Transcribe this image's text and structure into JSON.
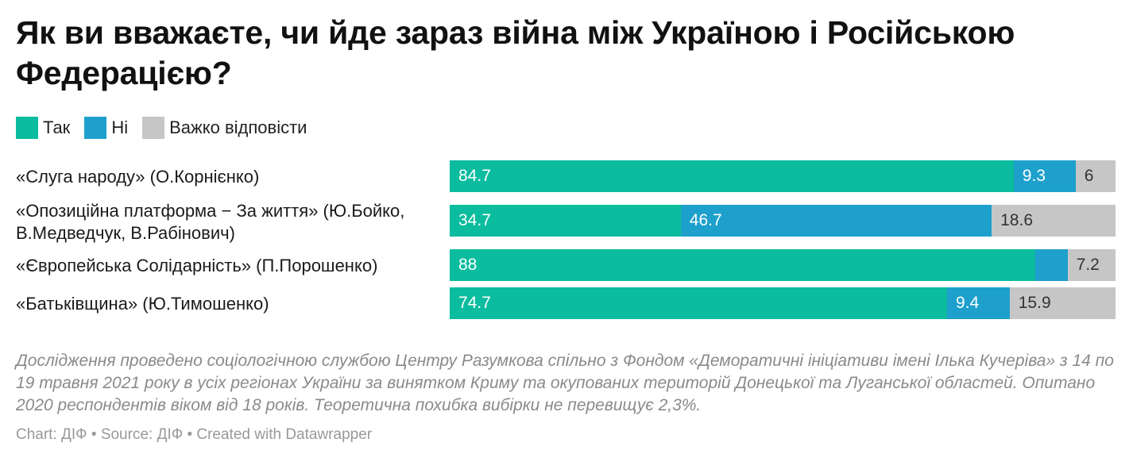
{
  "chart_data": {
    "type": "bar",
    "orientation": "horizontal",
    "stacked": true,
    "title": "Як ви вважаєте, чи йде зараз війна між Україною і Російською Федерацією?",
    "legend": [
      {
        "name": "Так",
        "color": "#0bbc9e"
      },
      {
        "name": "Ні",
        "color": "#1ea0cd"
      },
      {
        "name": "Важко відповісти",
        "color": "#c6c6c6"
      }
    ],
    "categories": [
      "«Слуга народу» (О.Корнієнко)",
      "«Опозиційна платформа − За життя» (Ю.Бойко, В.Медведчук, В.Рабінович)",
      "«Європейська Солідарність» (П.Порошенко)",
      "«Батьківщина» (Ю.Тимошенко)"
    ],
    "series": [
      {
        "name": "Так",
        "values": [
          84.7,
          34.7,
          88,
          74.7
        ],
        "labels": [
          "84.7",
          "34.7",
          "88",
          "74.7"
        ]
      },
      {
        "name": "Ні",
        "values": [
          9.3,
          46.7,
          4.8,
          9.4
        ],
        "labels": [
          "9.3",
          "46.7",
          "",
          "9.4"
        ]
      },
      {
        "name": "Важко відповісти",
        "values": [
          6,
          18.6,
          7.2,
          15.9
        ],
        "labels": [
          "6",
          "18.6",
          "7.2",
          "15.9"
        ]
      }
    ],
    "xlim": [
      0,
      100
    ],
    "note": "Дослідження проведено соціологічною службою Центру Разумкова спільно з Фондом «Деморатичні ініціативи імені Ілька Кучеріва» з 14 по 19 травня 2021 року в усіх регіонах України за винятком Криму та окупованих територій Донецької та Луганської областей. Опитано 2020 респондентів віком від 18 років. Теоретична похибка вибірки не перевищує 2,3%.",
    "credits": "Chart: ДІФ • Source: ДІФ • Created with Datawrapper"
  }
}
